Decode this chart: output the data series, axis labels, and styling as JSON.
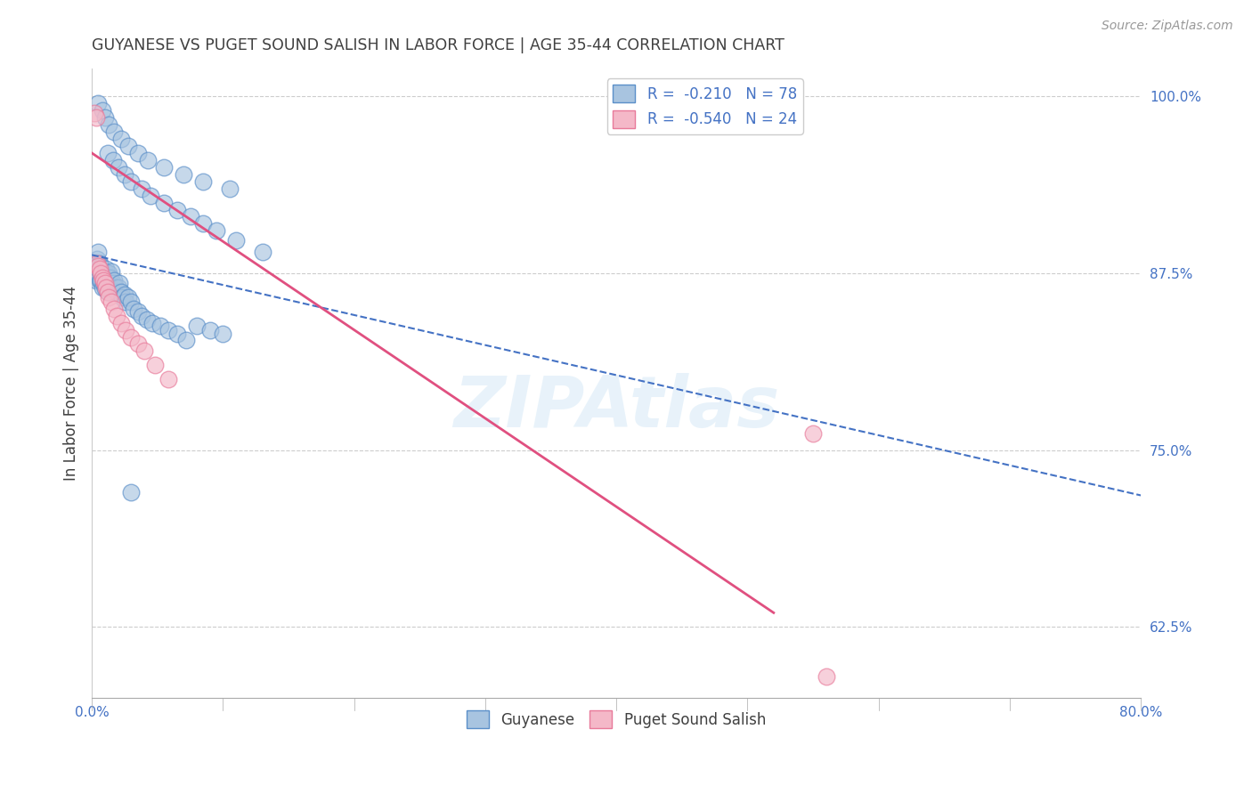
{
  "title": "GUYANESE VS PUGET SOUND SALISH IN LABOR FORCE | AGE 35-44 CORRELATION CHART",
  "source": "Source: ZipAtlas.com",
  "ylabel": "In Labor Force | Age 35-44",
  "xlim": [
    0.0,
    0.8
  ],
  "ylim": [
    0.575,
    1.02
  ],
  "xticks": [
    0.0,
    0.1,
    0.2,
    0.3,
    0.4,
    0.5,
    0.6,
    0.7,
    0.8
  ],
  "xticklabels": [
    "0.0%",
    "",
    "",
    "",
    "",
    "",
    "",
    "",
    "80.0%"
  ],
  "ytick_right_labels": [
    "100.0%",
    "87.5%",
    "75.0%",
    "62.5%"
  ],
  "ytick_right_values": [
    1.0,
    0.875,
    0.75,
    0.625
  ],
  "blue_color": "#a8c4e0",
  "pink_color": "#f4b8c8",
  "blue_edge_color": "#5b8fc9",
  "pink_edge_color": "#e87a9a",
  "blue_line_color": "#4472c4",
  "pink_line_color": "#e05080",
  "text_color": "#4472c4",
  "title_color": "#404040",
  "watermark": "ZIPAtlas",
  "blue_scatter_x": [
    0.002,
    0.003,
    0.003,
    0.004,
    0.004,
    0.005,
    0.005,
    0.006,
    0.006,
    0.007,
    0.007,
    0.008,
    0.008,
    0.009,
    0.009,
    0.01,
    0.01,
    0.011,
    0.011,
    0.012,
    0.012,
    0.013,
    0.013,
    0.014,
    0.015,
    0.015,
    0.016,
    0.017,
    0.018,
    0.019,
    0.02,
    0.021,
    0.022,
    0.023,
    0.025,
    0.026,
    0.028,
    0.03,
    0.032,
    0.035,
    0.038,
    0.042,
    0.046,
    0.052,
    0.058,
    0.065,
    0.072,
    0.08,
    0.09,
    0.1,
    0.012,
    0.016,
    0.02,
    0.025,
    0.03,
    0.038,
    0.045,
    0.055,
    0.065,
    0.075,
    0.085,
    0.095,
    0.11,
    0.13,
    0.005,
    0.008,
    0.01,
    0.013,
    0.017,
    0.022,
    0.028,
    0.035,
    0.043,
    0.055,
    0.07,
    0.085,
    0.105,
    0.03
  ],
  "blue_scatter_y": [
    0.875,
    0.88,
    0.87,
    0.885,
    0.875,
    0.89,
    0.878,
    0.882,
    0.87,
    0.88,
    0.87,
    0.875,
    0.865,
    0.872,
    0.868,
    0.876,
    0.864,
    0.878,
    0.87,
    0.872,
    0.862,
    0.875,
    0.868,
    0.872,
    0.876,
    0.864,
    0.868,
    0.87,
    0.865,
    0.862,
    0.865,
    0.868,
    0.862,
    0.858,
    0.86,
    0.855,
    0.858,
    0.855,
    0.85,
    0.848,
    0.845,
    0.842,
    0.84,
    0.838,
    0.835,
    0.832,
    0.828,
    0.838,
    0.835,
    0.832,
    0.96,
    0.955,
    0.95,
    0.945,
    0.94,
    0.935,
    0.93,
    0.925,
    0.92,
    0.915,
    0.91,
    0.905,
    0.898,
    0.89,
    0.995,
    0.99,
    0.985,
    0.98,
    0.975,
    0.97,
    0.965,
    0.96,
    0.955,
    0.95,
    0.945,
    0.94,
    0.935,
    0.72
  ],
  "pink_scatter_x": [
    0.002,
    0.003,
    0.004,
    0.005,
    0.006,
    0.007,
    0.008,
    0.009,
    0.01,
    0.011,
    0.012,
    0.013,
    0.015,
    0.017,
    0.019,
    0.022,
    0.026,
    0.03,
    0.035,
    0.04,
    0.048,
    0.058,
    0.55,
    0.56
  ],
  "pink_scatter_y": [
    0.988,
    0.985,
    0.882,
    0.88,
    0.878,
    0.875,
    0.872,
    0.87,
    0.868,
    0.865,
    0.862,
    0.858,
    0.855,
    0.85,
    0.845,
    0.84,
    0.835,
    0.83,
    0.825,
    0.82,
    0.81,
    0.8,
    0.762,
    0.59
  ],
  "blue_trend_x": [
    0.0,
    0.8
  ],
  "blue_trend_y": [
    0.888,
    0.718
  ],
  "pink_trend_x": [
    0.0,
    0.52
  ],
  "pink_trend_y": [
    0.96,
    0.635
  ]
}
